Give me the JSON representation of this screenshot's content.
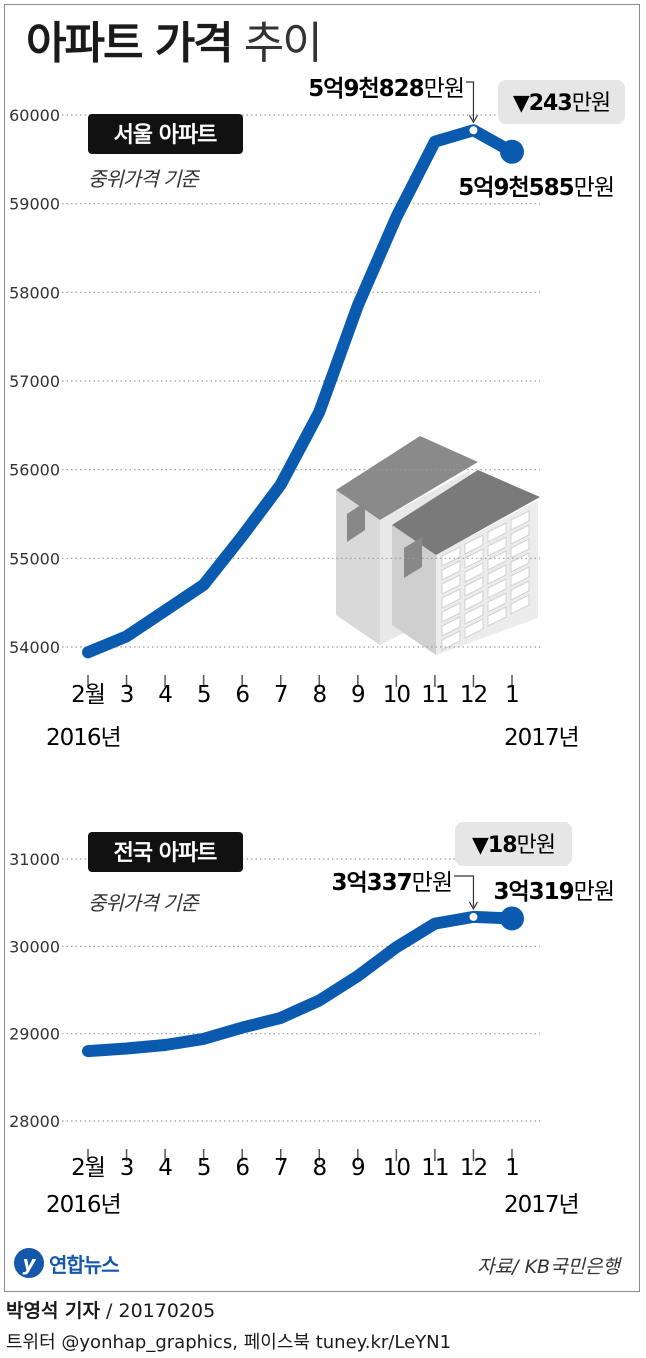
{
  "title": {
    "bold": "아파트 가격",
    "light": "추이"
  },
  "chart_data": [
    {
      "type": "line",
      "label": "서울 아파트",
      "sublabel": "중위가격 기준",
      "categories": [
        "2월",
        "3",
        "4",
        "5",
        "6",
        "7",
        "8",
        "9",
        "10",
        "11",
        "12",
        "1"
      ],
      "year_start": "2016년",
      "year_end": "2017년",
      "values": [
        53940,
        54120,
        54410,
        54700,
        55250,
        55830,
        56650,
        57850,
        58850,
        59700,
        59828,
        59585
      ],
      "ylim": [
        54000,
        60000
      ],
      "yticks": [
        54000,
        55000,
        56000,
        57000,
        58000,
        59000,
        60000
      ],
      "annotations": {
        "peak": "5억9천828만원",
        "last": "5억9천585만원",
        "change": "▼243만원"
      }
    },
    {
      "type": "line",
      "label": "전국 아파트",
      "sublabel": "중위가격 기준",
      "categories": [
        "2월",
        "3",
        "4",
        "5",
        "6",
        "7",
        "8",
        "9",
        "10",
        "11",
        "12",
        "1"
      ],
      "year_start": "2016년",
      "year_end": "2017년",
      "values": [
        28800,
        28830,
        28870,
        28940,
        29070,
        29180,
        29380,
        29660,
        29990,
        30260,
        30337,
        30319
      ],
      "ylim": [
        28000,
        31000
      ],
      "yticks": [
        28000,
        29000,
        30000,
        31000
      ],
      "annotations": {
        "peak": "3억337만원",
        "last": "3억319만원",
        "change": "▼18만원"
      }
    }
  ],
  "colors": {
    "line": "#0a5bb0",
    "label_bg": "#111111",
    "change_bg": "#e6e6e6"
  },
  "logo": {
    "mark": "y",
    "text": "연합뉴스"
  },
  "source": "자료/ KB국민은행",
  "footer": {
    "reporter": "박영석 기자",
    "date": " / 20170205",
    "social": "트위터 @yonhap_graphics, 페이스북 tuney.kr/LeYN1"
  }
}
